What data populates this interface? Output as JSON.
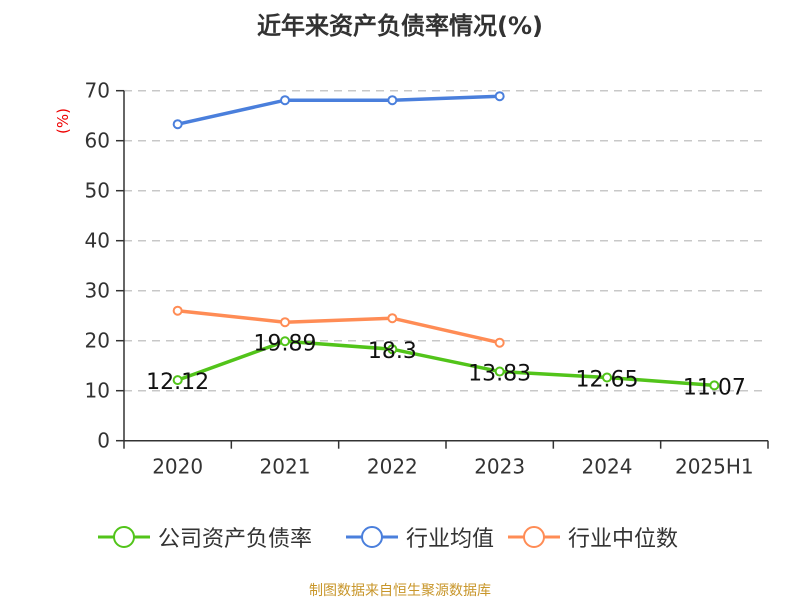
{
  "chart_data": {
    "type": "line",
    "title": "近年来资产负债率情况(%)",
    "ylabel": "(%)",
    "xlabel": "",
    "categories": [
      "2020",
      "2021",
      "2022",
      "2023",
      "2024",
      "2025H1"
    ],
    "ylim": [
      0,
      70
    ],
    "yticks": [
      0,
      10,
      20,
      30,
      40,
      50,
      60,
      70
    ],
    "grid": true,
    "legend_position": "bottom",
    "series": [
      {
        "name": "公司资产负债率",
        "color": "#52c41a",
        "values": [
          12.12,
          19.89,
          18.3,
          13.83,
          12.65,
          11.07
        ],
        "labels": [
          "12.12",
          "19.89",
          "18.3",
          "13.83",
          "12.65",
          "11.07"
        ]
      },
      {
        "name": "行业均值",
        "color": "#4a7fdc",
        "values": [
          63.3,
          68.1,
          68.1,
          68.9,
          null,
          null
        ]
      },
      {
        "name": "行业中位数",
        "color": "#ff8c55",
        "values": [
          26.0,
          23.7,
          24.5,
          19.6,
          null,
          null
        ]
      }
    ]
  },
  "source": "制图数据来自恒生聚源数据库"
}
